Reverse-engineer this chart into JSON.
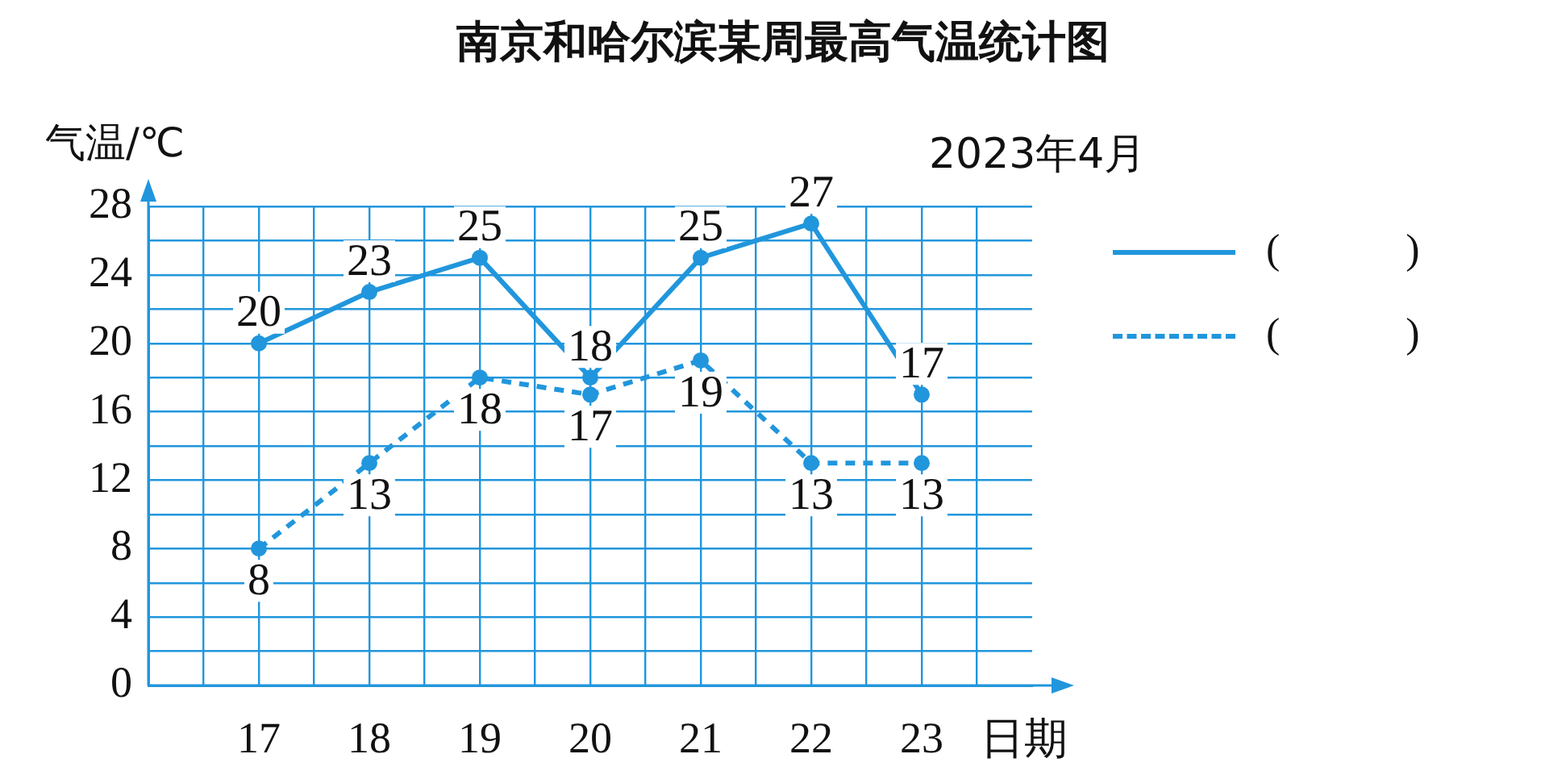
{
  "chart_data": {
    "type": "line",
    "title": "南京和哈尔滨某周最高气温统计图",
    "xlabel": "日期",
    "ylabel": "气温/℃",
    "annotations": [
      "2023年4月"
    ],
    "x": [
      17,
      18,
      19,
      20,
      21,
      22,
      23
    ],
    "xlim": [
      16,
      24
    ],
    "xticks": [
      {
        "value": 16.5,
        "label": null
      },
      17,
      {
        "value": 17.5,
        "label": null
      },
      18,
      {
        "value": 18.5,
        "label": null
      },
      19,
      {
        "value": 19.5,
        "label": null
      },
      20,
      {
        "value": 20.5,
        "label": null
      },
      21,
      {
        "value": 21.5,
        "label": null
      },
      22,
      {
        "value": 22.5,
        "label": null
      },
      23,
      {
        "value": 23.5,
        "label": null
      }
    ],
    "ylim": [
      0,
      28
    ],
    "yticks": [
      0,
      {
        "value": 2,
        "label": null
      },
      4,
      {
        "value": 6,
        "label": null
      },
      8,
      {
        "value": 10,
        "label": null
      },
      12,
      {
        "value": 14,
        "label": null
      },
      16,
      {
        "value": 18,
        "label": null
      },
      20,
      {
        "value": 22,
        "label": null
      },
      24,
      {
        "value": 26,
        "label": null
      },
      28
    ],
    "grid": true,
    "legend": "right",
    "marker": "circle",
    "data_labels": true,
    "series": [
      {
        "name": "(            )",
        "color": "#2196dc",
        "line_style": "solid",
        "values": [
          20,
          23,
          25,
          18,
          25,
          27,
          17
        ]
      },
      {
        "name": "(            )",
        "color": "#2196dc",
        "line_style": "dashed",
        "values": [
          8,
          13,
          18,
          17,
          19,
          13,
          13
        ]
      }
    ]
  }
}
